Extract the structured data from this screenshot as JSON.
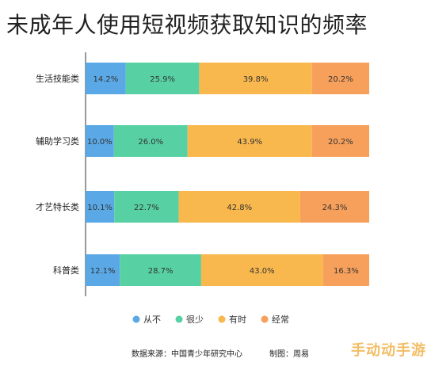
{
  "chart_data": {
    "type": "bar",
    "stacked": true,
    "orientation": "horizontal",
    "title": "未成年人使用短视频获取知识的频率",
    "categories": [
      "生活技能类",
      "辅助学习类",
      "才艺特长类",
      "科普类"
    ],
    "series": [
      {
        "name": "从不",
        "color": "#5aa9e6",
        "values": [
          14.2,
          10.0,
          10.1,
          12.1
        ],
        "labels": [
          "14.2%",
          "10.0%",
          "10.1%",
          "12.1%"
        ]
      },
      {
        "name": "很少",
        "color": "#57d1a3",
        "values": [
          25.9,
          26.0,
          22.7,
          28.7
        ],
        "labels": [
          "25.9%",
          "26.0%",
          "22.7%",
          "28.7%"
        ]
      },
      {
        "name": "有时",
        "color": "#f9b84e",
        "values": [
          39.8,
          43.9,
          42.8,
          43.0
        ],
        "labels": [
          "39.8%",
          "43.9%",
          "42.8%",
          "43.0%"
        ]
      },
      {
        "name": "经常",
        "color": "#f7a05c",
        "values": [
          20.2,
          20.2,
          24.3,
          16.3
        ],
        "labels": [
          "20.2%",
          "20.2%",
          "24.3%",
          "16.3%"
        ]
      }
    ],
    "xlim": [
      0,
      100
    ],
    "grid": false,
    "legend_position": "bottom-center"
  },
  "source": {
    "text": "数据来源：中国青少年研究中心",
    "author": "制图：周易"
  },
  "watermark": "手动动手游"
}
